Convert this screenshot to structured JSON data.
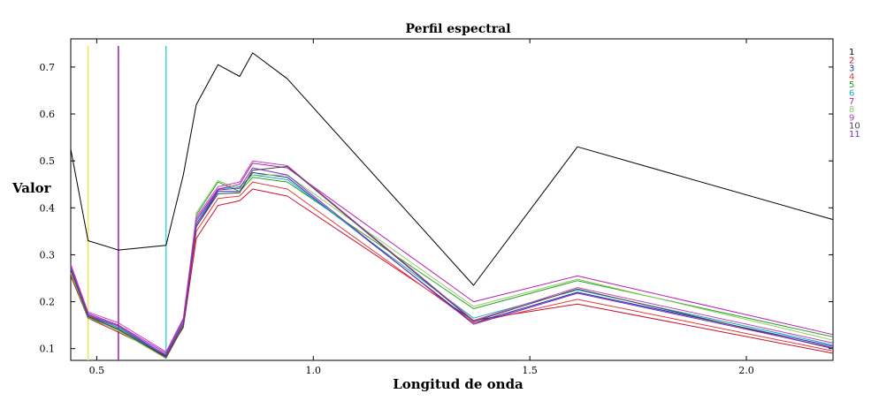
{
  "chart_data": {
    "type": "line",
    "title": "Perfil espectral",
    "xlabel": "Longitud de onda",
    "ylabel": "Valor",
    "xlim": [
      0.44,
      2.2
    ],
    "ylim": [
      0.075,
      0.76
    ],
    "x_ticks": [
      0.5,
      1.0,
      1.5,
      2.0
    ],
    "x_tick_labels": [
      "0.5",
      "1.0",
      "1.5",
      "2.0"
    ],
    "y_ticks": [
      0.1,
      0.2,
      0.3,
      0.4,
      0.5,
      0.6,
      0.7
    ],
    "y_tick_labels": [
      "0.1",
      "0.2",
      "0.3",
      "0.4",
      "0.5",
      "0.6",
      "0.7"
    ],
    "grid": false,
    "legend_position": "right",
    "vertical_markers": [
      {
        "x": 0.48,
        "color": "#e8e860"
      },
      {
        "x": 0.55,
        "color": "#9b1fb8"
      },
      {
        "x": 0.66,
        "color": "#3fd8e0"
      }
    ],
    "x": [
      0.44,
      0.48,
      0.55,
      0.66,
      0.7,
      0.73,
      0.78,
      0.83,
      0.86,
      0.94,
      1.37,
      1.61,
      2.2
    ],
    "series": [
      {
        "name": "1",
        "color": "#000000",
        "values": [
          0.525,
          0.33,
          0.31,
          0.32,
          0.47,
          0.62,
          0.705,
          0.68,
          0.73,
          0.675,
          0.235,
          0.53,
          0.375
        ]
      },
      {
        "name": "2",
        "color": "#c8102e",
        "values": [
          0.255,
          0.165,
          0.135,
          0.085,
          0.145,
          0.335,
          0.405,
          0.415,
          0.44,
          0.425,
          0.16,
          0.195,
          0.09
        ]
      },
      {
        "name": "3",
        "color": "#1f2fb3",
        "values": [
          0.265,
          0.17,
          0.145,
          0.083,
          0.155,
          0.36,
          0.435,
          0.435,
          0.475,
          0.465,
          0.155,
          0.22,
          0.105
        ]
      },
      {
        "name": "4",
        "color": "#e03c3c",
        "values": [
          0.27,
          0.17,
          0.14,
          0.082,
          0.15,
          0.35,
          0.42,
          0.425,
          0.455,
          0.44,
          0.155,
          0.205,
          0.095
        ]
      },
      {
        "name": "5",
        "color": "#2ca02c",
        "values": [
          0.26,
          0.165,
          0.14,
          0.08,
          0.15,
          0.385,
          0.455,
          0.435,
          0.465,
          0.455,
          0.185,
          0.245,
          0.125
        ]
      },
      {
        "name": "6",
        "color": "#19a9b5",
        "values": [
          0.27,
          0.172,
          0.145,
          0.087,
          0.16,
          0.37,
          0.44,
          0.445,
          0.47,
          0.46,
          0.165,
          0.225,
          0.108
        ]
      },
      {
        "name": "7",
        "color": "#b71db5",
        "values": [
          0.275,
          0.175,
          0.15,
          0.09,
          0.162,
          0.375,
          0.44,
          0.45,
          0.495,
          0.485,
          0.2,
          0.255,
          0.13
        ]
      },
      {
        "name": "8",
        "color": "#8fd05a",
        "values": [
          0.262,
          0.168,
          0.138,
          0.079,
          0.148,
          0.39,
          0.458,
          0.44,
          0.47,
          0.47,
          0.19,
          0.248,
          0.118
        ]
      },
      {
        "name": "9",
        "color": "#c040c0",
        "values": [
          0.28,
          0.178,
          0.155,
          0.093,
          0.165,
          0.38,
          0.445,
          0.455,
          0.5,
          0.49,
          0.16,
          0.23,
          0.112
        ]
      },
      {
        "name": "10",
        "color": "#444444",
        "values": [
          0.268,
          0.168,
          0.142,
          0.081,
          0.148,
          0.36,
          0.43,
          0.432,
          0.48,
          0.488,
          0.158,
          0.227,
          0.1
        ]
      },
      {
        "name": "11",
        "color": "#7b2cbf",
        "values": [
          0.272,
          0.172,
          0.148,
          0.086,
          0.155,
          0.365,
          0.438,
          0.442,
          0.485,
          0.47,
          0.152,
          0.218,
          0.102
        ]
      }
    ]
  }
}
